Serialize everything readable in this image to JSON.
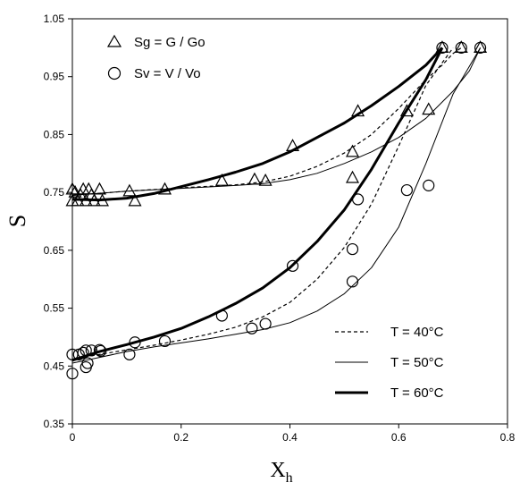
{
  "chart_data": {
    "type": "scatter",
    "xlabel": "X",
    "xlabel_sub": "h",
    "ylabel": "S",
    "xlim": [
      0,
      0.8
    ],
    "ylim": [
      0.35,
      1.05
    ],
    "xticks": [
      "0",
      "0.2",
      "0.4",
      "0.6",
      "0.8"
    ],
    "yticks": [
      "0.35",
      "0.45",
      "0.55",
      "0.65",
      "0.75",
      "0.85",
      "0.95",
      "1.05"
    ],
    "grid": false,
    "marker_legend": {
      "placement": "top-left",
      "entries": [
        {
          "marker": "triangle",
          "label": "Sg = G / Go"
        },
        {
          "marker": "circle",
          "label": "Sv = V / Vo"
        }
      ]
    },
    "line_legend": {
      "placement": "bottom-right",
      "entries": [
        {
          "style": "dotted",
          "label": "T = 40°C"
        },
        {
          "style": "thin",
          "label": "T = 50°C"
        },
        {
          "style": "thick",
          "label": "T = 60°C"
        }
      ]
    },
    "scatter_series": [
      {
        "marker": "triangle",
        "points": [
          [
            0.0,
            0.755
          ],
          [
            0.0,
            0.735
          ],
          [
            0.005,
            0.75
          ],
          [
            0.01,
            0.735
          ],
          [
            0.015,
            0.745
          ],
          [
            0.02,
            0.755
          ],
          [
            0.025,
            0.735
          ],
          [
            0.03,
            0.755
          ],
          [
            0.035,
            0.745
          ],
          [
            0.04,
            0.735
          ],
          [
            0.05,
            0.755
          ],
          [
            0.055,
            0.735
          ],
          [
            0.105,
            0.752
          ],
          [
            0.115,
            0.735
          ],
          [
            0.17,
            0.755
          ],
          [
            0.275,
            0.77
          ],
          [
            0.335,
            0.772
          ],
          [
            0.355,
            0.77
          ],
          [
            0.405,
            0.83
          ],
          [
            0.515,
            0.82
          ],
          [
            0.515,
            0.775
          ],
          [
            0.525,
            0.89
          ],
          [
            0.615,
            0.89
          ],
          [
            0.655,
            0.893
          ],
          [
            0.68,
            1.0
          ],
          [
            0.715,
            1.0
          ],
          [
            0.75,
            1.0
          ]
        ]
      },
      {
        "marker": "circle",
        "points": [
          [
            0.0,
            0.47
          ],
          [
            0.0,
            0.437
          ],
          [
            0.012,
            0.47
          ],
          [
            0.02,
            0.473
          ],
          [
            0.025,
            0.477
          ],
          [
            0.025,
            0.448
          ],
          [
            0.028,
            0.455
          ],
          [
            0.035,
            0.477
          ],
          [
            0.05,
            0.478
          ],
          [
            0.052,
            0.476
          ],
          [
            0.105,
            0.47
          ],
          [
            0.115,
            0.491
          ],
          [
            0.17,
            0.493
          ],
          [
            0.275,
            0.537
          ],
          [
            0.33,
            0.515
          ],
          [
            0.355,
            0.523
          ],
          [
            0.405,
            0.623
          ],
          [
            0.515,
            0.652
          ],
          [
            0.515,
            0.596
          ],
          [
            0.525,
            0.738
          ],
          [
            0.615,
            0.754
          ],
          [
            0.655,
            0.762
          ],
          [
            0.68,
            1.0
          ],
          [
            0.715,
            1.0
          ],
          [
            0.75,
            1.0
          ]
        ]
      }
    ],
    "curves": [
      {
        "style": "dotted",
        "group": "Sg",
        "points": [
          [
            0.0,
            0.745
          ],
          [
            0.1,
            0.752
          ],
          [
            0.2,
            0.758
          ],
          [
            0.3,
            0.763
          ],
          [
            0.35,
            0.768
          ],
          [
            0.4,
            0.778
          ],
          [
            0.45,
            0.795
          ],
          [
            0.5,
            0.818
          ],
          [
            0.55,
            0.85
          ],
          [
            0.6,
            0.895
          ],
          [
            0.65,
            0.945
          ],
          [
            0.68,
            0.97
          ],
          [
            0.7,
            0.99
          ],
          [
            0.715,
            1.0
          ]
        ]
      },
      {
        "style": "thin",
        "group": "Sg",
        "points": [
          [
            0.0,
            0.745
          ],
          [
            0.1,
            0.752
          ],
          [
            0.2,
            0.757
          ],
          [
            0.3,
            0.762
          ],
          [
            0.35,
            0.765
          ],
          [
            0.4,
            0.772
          ],
          [
            0.45,
            0.783
          ],
          [
            0.5,
            0.8
          ],
          [
            0.55,
            0.82
          ],
          [
            0.6,
            0.845
          ],
          [
            0.65,
            0.878
          ],
          [
            0.7,
            0.925
          ],
          [
            0.73,
            0.96
          ],
          [
            0.75,
            1.0
          ]
        ]
      },
      {
        "style": "thick",
        "group": "Sg",
        "points": [
          [
            0.0,
            0.738
          ],
          [
            0.05,
            0.737
          ],
          [
            0.1,
            0.74
          ],
          [
            0.15,
            0.748
          ],
          [
            0.2,
            0.76
          ],
          [
            0.25,
            0.772
          ],
          [
            0.3,
            0.785
          ],
          [
            0.35,
            0.8
          ],
          [
            0.4,
            0.82
          ],
          [
            0.45,
            0.845
          ],
          [
            0.5,
            0.87
          ],
          [
            0.55,
            0.9
          ],
          [
            0.6,
            0.933
          ],
          [
            0.65,
            0.97
          ],
          [
            0.68,
            1.0
          ]
        ]
      },
      {
        "style": "dotted",
        "group": "Sv",
        "points": [
          [
            0.0,
            0.462
          ],
          [
            0.05,
            0.47
          ],
          [
            0.1,
            0.478
          ],
          [
            0.15,
            0.486
          ],
          [
            0.2,
            0.495
          ],
          [
            0.25,
            0.505
          ],
          [
            0.3,
            0.517
          ],
          [
            0.35,
            0.535
          ],
          [
            0.4,
            0.56
          ],
          [
            0.45,
            0.6
          ],
          [
            0.5,
            0.655
          ],
          [
            0.55,
            0.73
          ],
          [
            0.6,
            0.83
          ],
          [
            0.65,
            0.935
          ],
          [
            0.7,
            1.0
          ]
        ]
      },
      {
        "style": "thin",
        "group": "Sv",
        "points": [
          [
            0.0,
            0.455
          ],
          [
            0.05,
            0.465
          ],
          [
            0.1,
            0.475
          ],
          [
            0.15,
            0.483
          ],
          [
            0.2,
            0.49
          ],
          [
            0.25,
            0.497
          ],
          [
            0.3,
            0.505
          ],
          [
            0.35,
            0.513
          ],
          [
            0.4,
            0.525
          ],
          [
            0.45,
            0.545
          ],
          [
            0.5,
            0.575
          ],
          [
            0.55,
            0.62
          ],
          [
            0.6,
            0.69
          ],
          [
            0.65,
            0.8
          ],
          [
            0.7,
            0.92
          ],
          [
            0.75,
            1.0
          ]
        ]
      },
      {
        "style": "thick",
        "group": "Sv",
        "points": [
          [
            0.0,
            0.46
          ],
          [
            0.05,
            0.475
          ],
          [
            0.1,
            0.487
          ],
          [
            0.15,
            0.5
          ],
          [
            0.2,
            0.515
          ],
          [
            0.25,
            0.535
          ],
          [
            0.3,
            0.558
          ],
          [
            0.35,
            0.585
          ],
          [
            0.4,
            0.62
          ],
          [
            0.45,
            0.665
          ],
          [
            0.5,
            0.72
          ],
          [
            0.55,
            0.79
          ],
          [
            0.6,
            0.87
          ],
          [
            0.65,
            0.945
          ],
          [
            0.68,
            1.0
          ]
        ]
      }
    ]
  }
}
